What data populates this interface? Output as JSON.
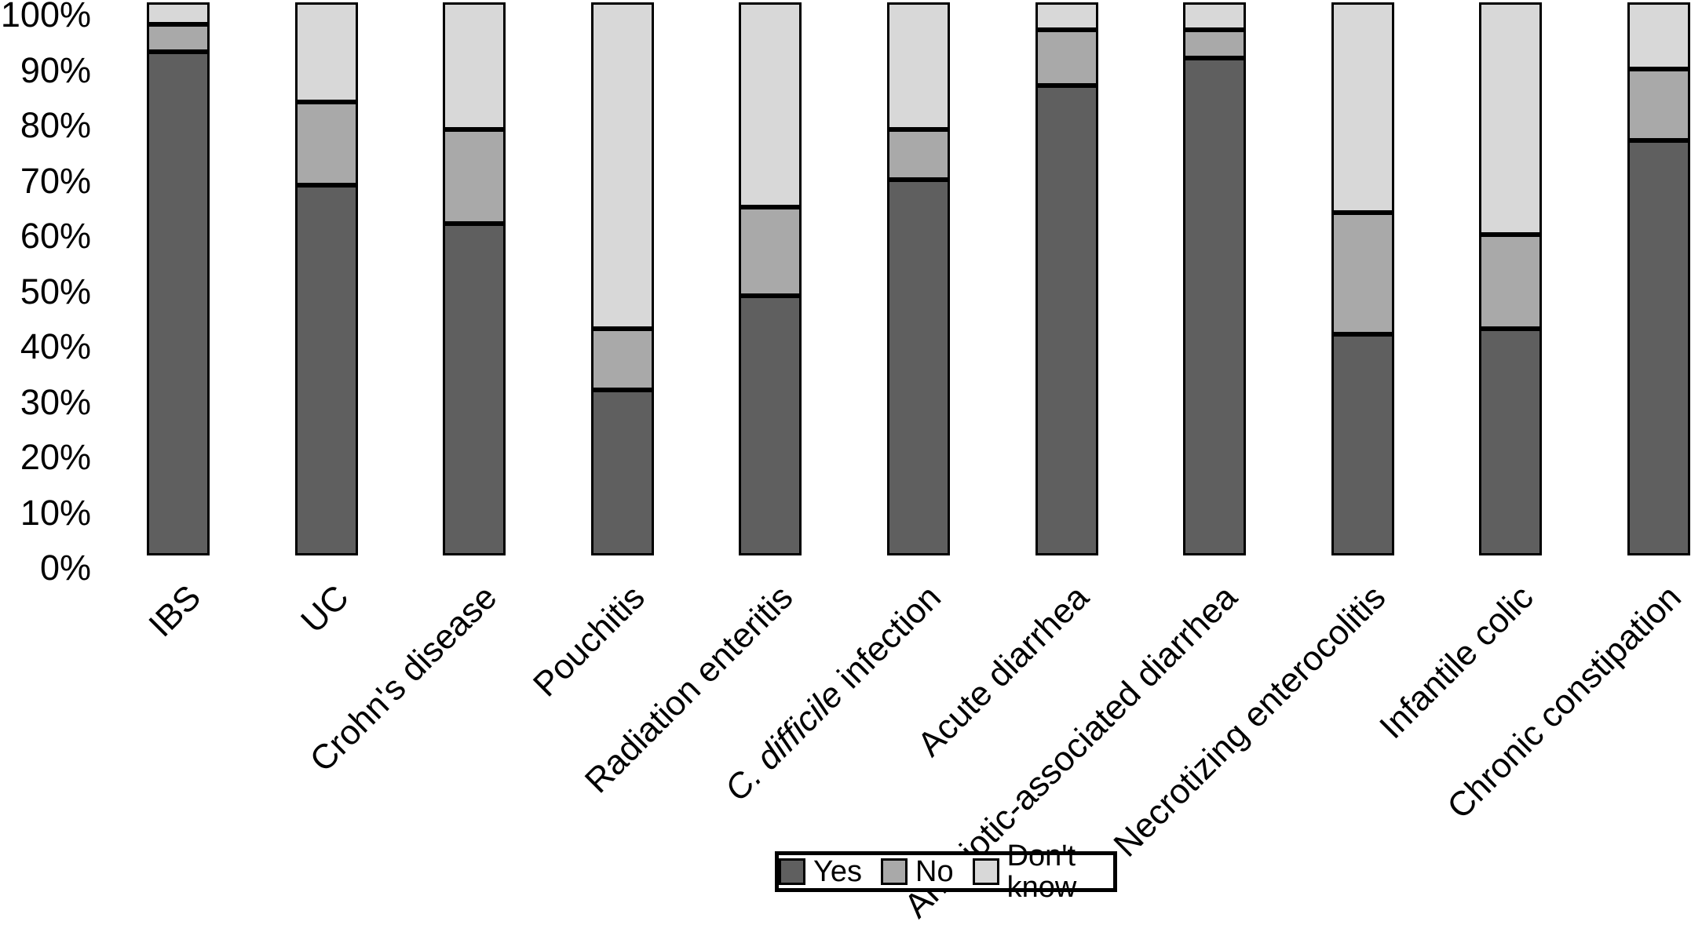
{
  "figure": {
    "background": "#ffffff",
    "text_color": "#000000"
  },
  "y_axis": {
    "tick_labels": [
      "100%",
      "90%",
      "80%",
      "70%",
      "60%",
      "50%",
      "40%",
      "30%",
      "20%",
      "10%",
      "0%"
    ]
  },
  "chart_data": {
    "type": "bar",
    "stacked": true,
    "percent_stacked": true,
    "grid": false,
    "ylim": [
      0,
      100
    ],
    "legend_position": "bottom-center",
    "bar_border_color": "#000000",
    "categories": [
      "IBS",
      "UC",
      "Crohn's disease",
      "Pouchitis",
      "Radiation enteritis",
      "C. difficile infection",
      "Acute diarrhea",
      "Antibiotic-associated diarrhea",
      "Necrotizing enterocolitis",
      "Infantile colic",
      "Chronic constipation"
    ],
    "italic_parts": {
      "5": "C. difficile"
    },
    "series": [
      {
        "name": "Yes",
        "color": "#5f5f5f",
        "values": [
          91,
          67,
          60,
          30,
          47,
          68,
          85,
          90,
          40,
          41,
          75
        ]
      },
      {
        "name": "No",
        "color": "#a9a9a9",
        "values": [
          5,
          15,
          17,
          11,
          16,
          9,
          10,
          5,
          22,
          17,
          13
        ]
      },
      {
        "name": "Don't know",
        "color": "#d8d8d8",
        "values": [
          4,
          18,
          23,
          59,
          37,
          23,
          5,
          5,
          38,
          42,
          12
        ]
      }
    ]
  }
}
